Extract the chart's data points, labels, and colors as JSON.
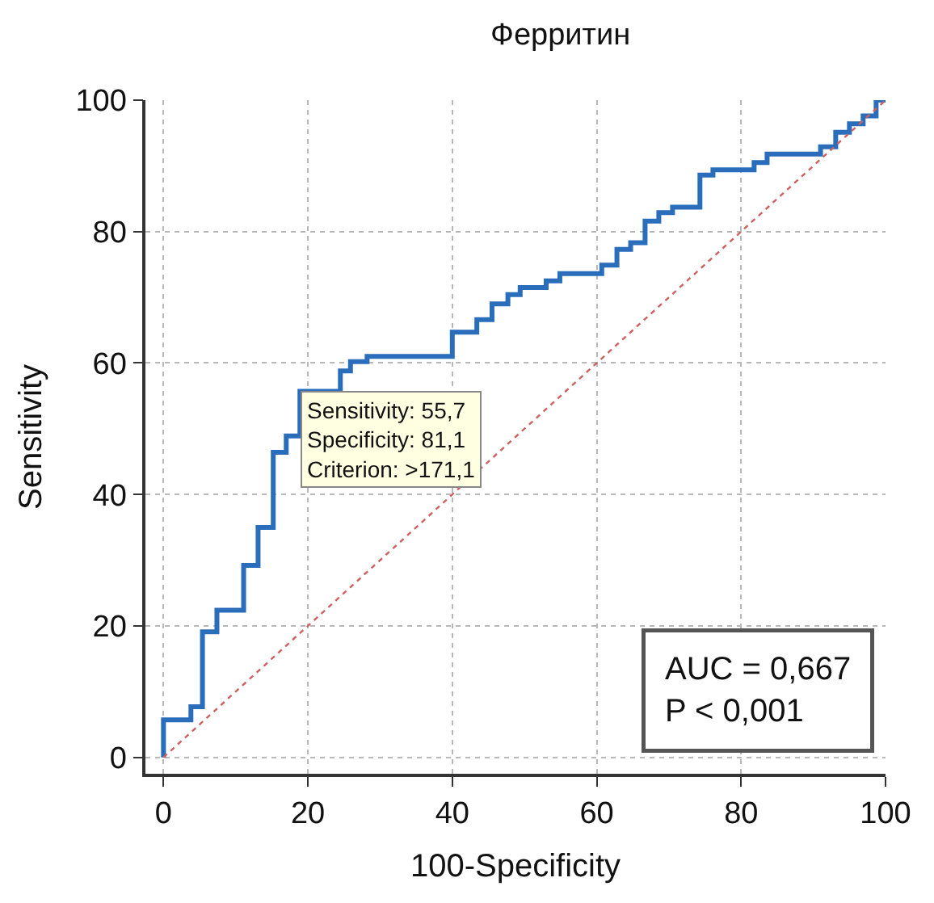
{
  "chart_data": {
    "type": "step",
    "title": "Ферритин",
    "xlabel": "100-Specificity",
    "ylabel": "Sensitivity",
    "xlim": [
      -2.5,
      100
    ],
    "ylim": [
      -2.5,
      100
    ],
    "xticks": [
      0,
      20,
      40,
      60,
      80,
      100
    ],
    "yticks": [
      0,
      20,
      40,
      60,
      80,
      100
    ],
    "grid": true,
    "series": [
      {
        "color": "#2a6ebb",
        "line_style": "solid",
        "x": [
          0,
          0,
          3.8,
          5.4,
          7.4,
          11.1,
          13.1,
          15.2,
          17.0,
          18.9,
          24.5,
          25.9,
          28.2,
          40.0,
          43.4,
          45.5,
          47.7,
          49.4,
          53.0,
          54.9,
          60.7,
          62.8,
          64.7,
          66.7,
          68.6,
          70.5,
          74.3,
          76.1,
          81.8,
          83.6,
          91.0,
          93.1,
          95.0,
          96.9,
          98.7,
          100
        ],
        "values": [
          0,
          5.7,
          7.7,
          19.1,
          22.4,
          29.2,
          35.0,
          46.4,
          48.9,
          55.7,
          58.8,
          60.2,
          61.0,
          64.7,
          66.6,
          69.0,
          70.4,
          71.5,
          72.5,
          73.6,
          74.9,
          77.3,
          78.3,
          81.6,
          82.9,
          83.7,
          88.6,
          89.4,
          90.5,
          91.8,
          92.9,
          95.1,
          96.4,
          97.6,
          100,
          100
        ]
      },
      {
        "type": "line",
        "color": "#d06060",
        "line_style": "dotted",
        "x": [
          0,
          100
        ],
        "values": [
          0,
          100
        ]
      }
    ],
    "annotations": [
      {
        "text": "Sensitivity: 55,7\nSpecificity: 81,1\nCriterion: >171,1",
        "x": 18.9,
        "y": 55.7
      },
      "AUC = 0,667\nP < 0,001"
    ]
  }
}
